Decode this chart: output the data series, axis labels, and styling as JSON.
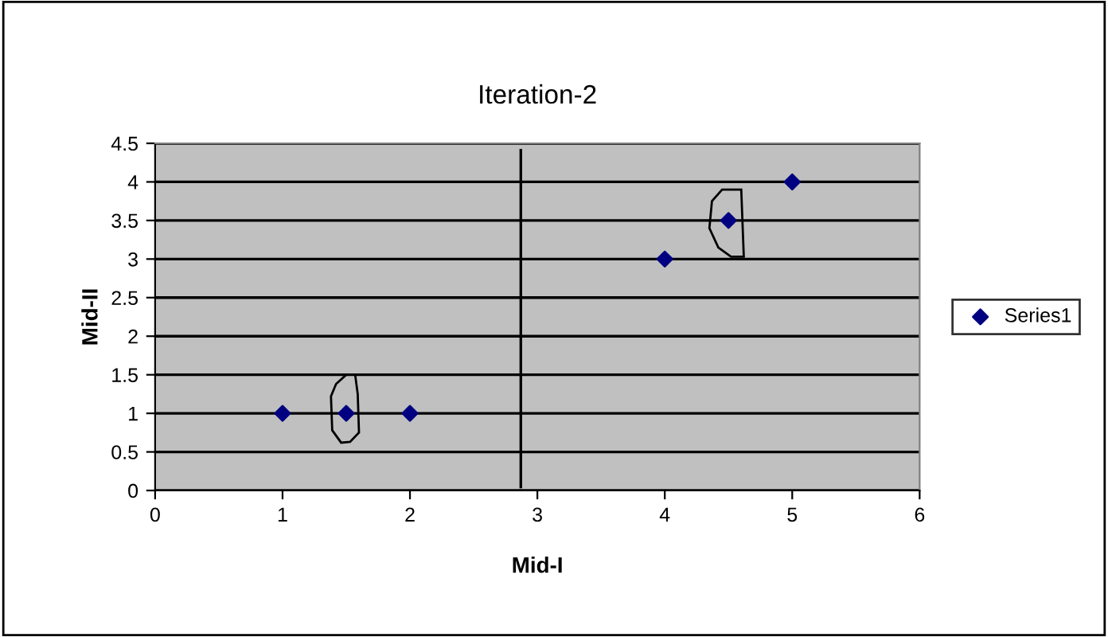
{
  "chart_data": {
    "type": "scatter",
    "title": "Iteration-2",
    "xlabel": "Mid-I",
    "ylabel": "Mid-II",
    "x": [
      1,
      1.5,
      2,
      4,
      4.5,
      5
    ],
    "series": [
      {
        "name": "Series1",
        "color": "#000080",
        "values": [
          1,
          1,
          1,
          3,
          3.5,
          4
        ]
      }
    ],
    "xlim": [
      0,
      6
    ],
    "xticks": [
      0,
      1,
      2,
      3,
      4,
      5,
      6
    ],
    "ylim": [
      0,
      4.5
    ],
    "yticks": [
      0,
      0.5,
      1,
      1.5,
      2,
      2.5,
      3,
      3.5,
      4,
      4.5
    ],
    "ref_lines": [
      {
        "axis": "x",
        "value": 2.87,
        "color": "#000000"
      }
    ],
    "grid": "y",
    "legend": "right",
    "marker": "diamond"
  }
}
